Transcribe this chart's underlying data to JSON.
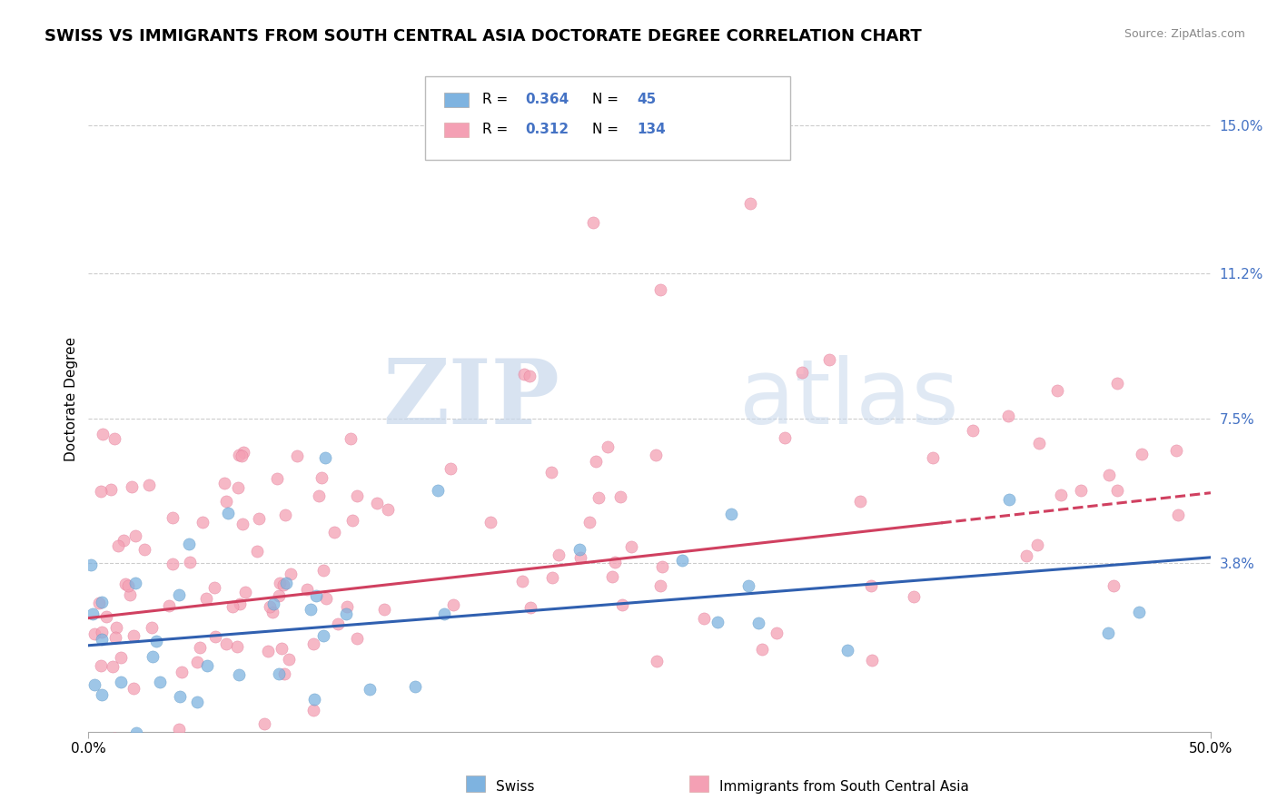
{
  "title": "SWISS VS IMMIGRANTS FROM SOUTH CENTRAL ASIA DOCTORATE DEGREE CORRELATION CHART",
  "source_text": "Source: ZipAtlas.com",
  "ylabel": "Doctorate Degree",
  "xlim": [
    0.0,
    0.5
  ],
  "ylim": [
    -0.005,
    0.165
  ],
  "yticks": [
    0.038,
    0.075,
    0.112,
    0.15
  ],
  "ytick_labels": [
    "3.8%",
    "7.5%",
    "11.2%",
    "15.0%"
  ],
  "xticks": [
    0.0,
    0.5
  ],
  "xtick_labels": [
    "0.0%",
    "50.0%"
  ],
  "swiss_color": "#7eb3e0",
  "swiss_edge_color": "#5090c0",
  "immigrant_color": "#f4a0b4",
  "immigrant_edge_color": "#e07090",
  "swiss_line_color": "#3060b0",
  "immigrant_line_color": "#d04060",
  "swiss_R": 0.364,
  "swiss_N": 45,
  "immigrant_R": 0.312,
  "immigrant_N": 134,
  "legend_label_swiss": "Swiss",
  "legend_label_immigrant": "Immigrants from South Central Asia",
  "watermark_zip": "ZIP",
  "watermark_atlas": "atlas",
  "title_fontsize": 13,
  "label_fontsize": 11,
  "tick_fontsize": 11,
  "legend_value_color": "#4472c4",
  "source_color": "#888888"
}
